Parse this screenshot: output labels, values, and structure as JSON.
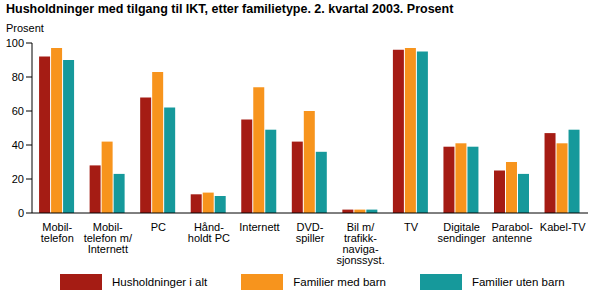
{
  "chart_data": {
    "type": "bar",
    "title": "Husholdninger med tilgang til IKT, etter familietype. 2. kvartal 2003. Prosent",
    "y_label": "Prosent",
    "categories": [
      "Mobil-\ntelefon",
      "Mobil-\ntelefon m/\nInternett",
      "PC",
      "Hånd-\nholdt PC",
      "Internett",
      "DVD-\nspiller",
      "Bil m/\ntrafikk-\nnaviga-\nsjonssyst.",
      "TV",
      "Digitale\nsendinger",
      "Parabol-\nantenne",
      "Kabel-TV"
    ],
    "series": [
      {
        "name": "Husholdninger i alt",
        "color": "#a51c14",
        "values": [
          92,
          28,
          68,
          11,
          55,
          42,
          2,
          96,
          39,
          25,
          47
        ]
      },
      {
        "name": "Familier med barn",
        "color": "#f7941d",
        "values": [
          97,
          42,
          83,
          12,
          74,
          60,
          2,
          97,
          41,
          30,
          41
        ]
      },
      {
        "name": "Familier uten barn",
        "color": "#16999b",
        "values": [
          90,
          23,
          62,
          10,
          49,
          36,
          2,
          95,
          39,
          23,
          49
        ]
      }
    ],
    "ylim": [
      0,
      100
    ],
    "yticks": [
      0,
      20,
      40,
      60,
      80,
      100
    ],
    "grid": false
  }
}
